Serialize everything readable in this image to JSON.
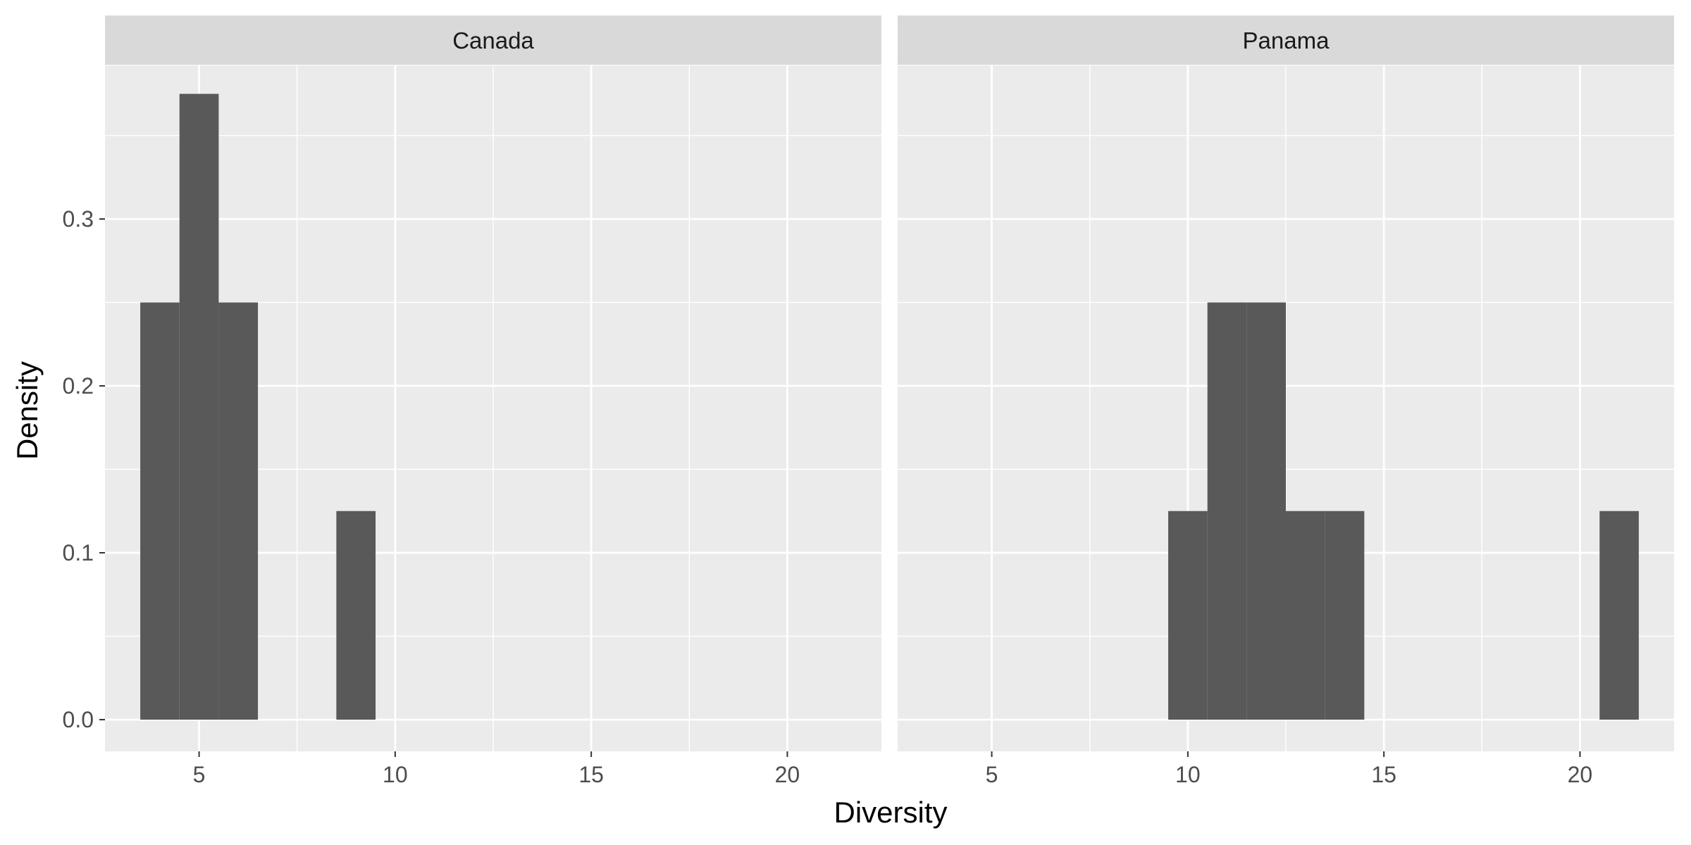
{
  "chart_data": {
    "type": "bar",
    "subtype": "histogram",
    "xlabel": "Diversity",
    "ylabel": "Density",
    "xlim": [
      2.6,
      22.4
    ],
    "ylim": [
      -0.019,
      0.392
    ],
    "x_ticks": [
      5,
      10,
      15,
      20
    ],
    "x_tick_labels": [
      "5",
      "10",
      "15",
      "20"
    ],
    "y_ticks": [
      0.0,
      0.1,
      0.2,
      0.3
    ],
    "y_tick_labels": [
      "0.0",
      "0.1",
      "0.2",
      "0.3"
    ],
    "grid": true,
    "colors": {
      "panel_bg": "#EBEBEB",
      "strip_bg": "#D9D9D9",
      "bar_fill": "#595959",
      "grid": "#FFFFFF",
      "tick": "#333333"
    },
    "panels": [
      {
        "label": "Canada",
        "bars": [
          {
            "x_start": 3.5,
            "x_end": 4.5,
            "density": 0.25
          },
          {
            "x_start": 4.5,
            "x_end": 5.5,
            "density": 0.375
          },
          {
            "x_start": 5.5,
            "x_end": 6.5,
            "density": 0.25
          },
          {
            "x_start": 8.5,
            "x_end": 9.5,
            "density": 0.125
          }
        ]
      },
      {
        "label": "Panama",
        "bars": [
          {
            "x_start": 9.5,
            "x_end": 10.5,
            "density": 0.125
          },
          {
            "x_start": 10.5,
            "x_end": 11.5,
            "density": 0.25
          },
          {
            "x_start": 11.5,
            "x_end": 12.5,
            "density": 0.25
          },
          {
            "x_start": 12.5,
            "x_end": 13.5,
            "density": 0.125
          },
          {
            "x_start": 13.5,
            "x_end": 14.5,
            "density": 0.125
          },
          {
            "x_start": 20.5,
            "x_end": 21.5,
            "density": 0.125
          }
        ]
      }
    ]
  }
}
